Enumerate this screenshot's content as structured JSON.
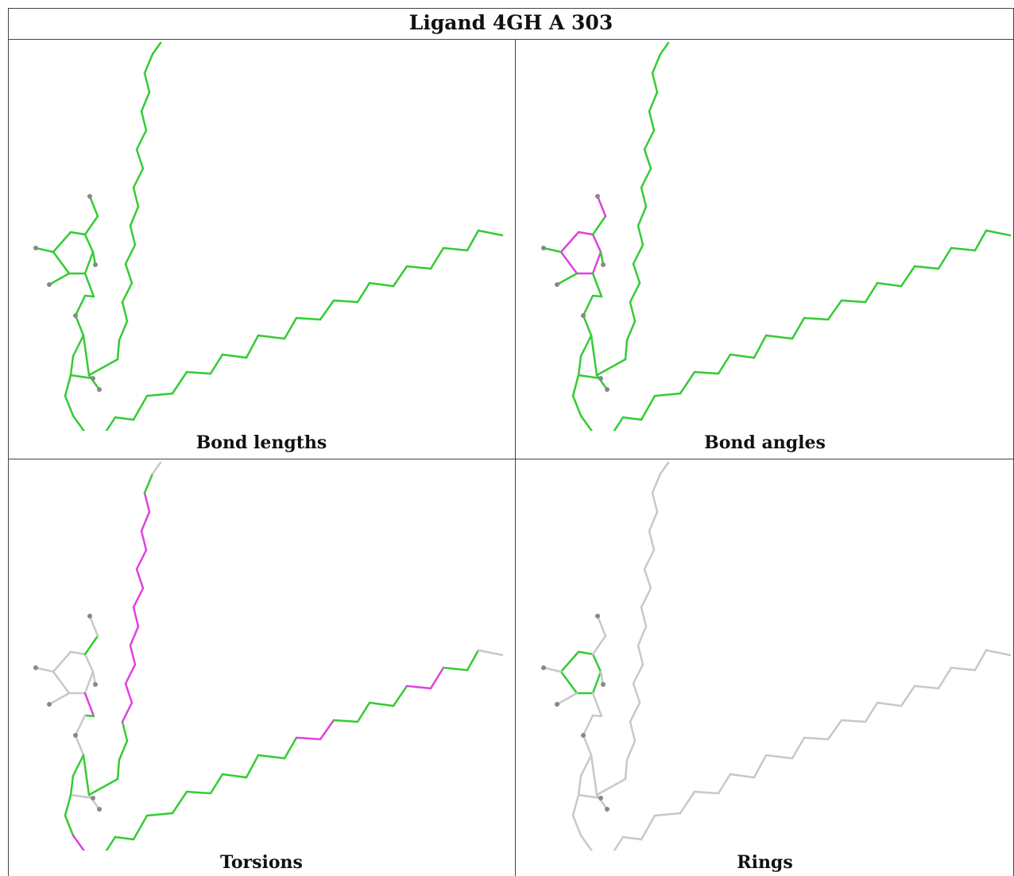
{
  "title": "Ligand 4GH A 303",
  "colors": {
    "ok": "#33cc33",
    "outlier": "#e040e0",
    "neutral": "#c8c8c8",
    "hydrogen": "#888888"
  },
  "panels": [
    {
      "caption": "Bond lengths",
      "highlight": "all",
      "outliers": [
        [
          4,
          9
        ]
      ]
    },
    {
      "caption": "Bond angles",
      "highlight": "all",
      "outliers": [
        [
          0,
          1
        ],
        [
          1,
          2
        ],
        [
          2,
          3
        ],
        [
          3,
          4
        ],
        [
          4,
          5
        ],
        [
          5,
          0
        ],
        [
          0,
          11
        ],
        [
          11,
          10
        ],
        [
          4,
          9
        ],
        [
          20,
          16
        ],
        [
          16,
          15
        ],
        [
          15,
          22
        ]
      ]
    },
    {
      "caption": "Torsions",
      "highlight": "torsion",
      "outliers": []
    },
    {
      "caption": "Rings",
      "highlight": "ring",
      "outliers": []
    }
  ]
}
